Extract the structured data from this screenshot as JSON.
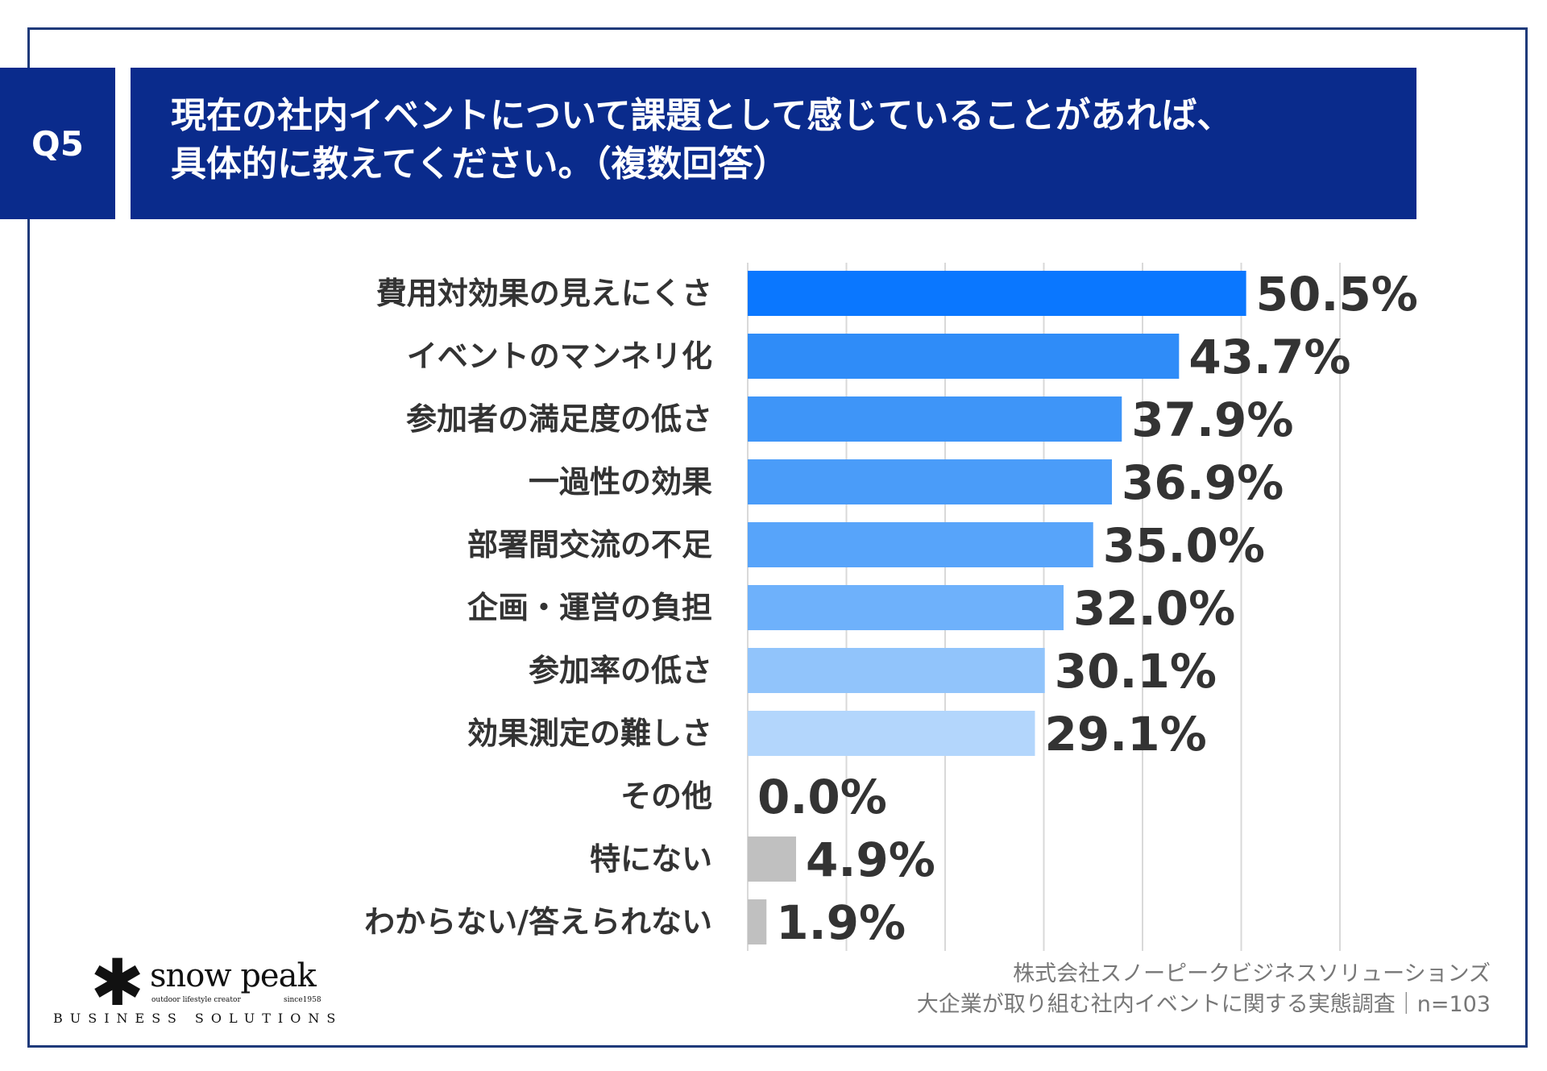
{
  "question": {
    "badge": "Q5",
    "line1": "現在の社内イベントについて課題として感じていることがあれば、",
    "line2": "具体的に教えてください。（複数回答）"
  },
  "chart_data": {
    "type": "bar",
    "orientation": "horizontal",
    "categories": [
      "費用対効果の見えにくさ",
      "イベントのマンネリ化",
      "参加者の満足度の低さ",
      "一過性の効果",
      "部署間交流の不足",
      "企画・運営の負担",
      "参加率の低さ",
      "効果測定の難しさ",
      "その他",
      "特にない",
      "わからない/答えられない"
    ],
    "values": [
      50.5,
      43.7,
      37.9,
      36.9,
      35.0,
      32.0,
      30.1,
      29.1,
      0.0,
      4.9,
      1.9
    ],
    "value_labels": [
      "50.5%",
      "43.7%",
      "37.9%",
      "36.9%",
      "35.0%",
      "32.0%",
      "30.1%",
      "29.1%",
      "0.0%",
      "4.9%",
      "1.9%"
    ],
    "colors": [
      "#0A77FF",
      "#2F8CF8",
      "#3E95F8",
      "#4A9CF9",
      "#57A4FA",
      "#6EB1FB",
      "#91C4FB",
      "#B3D6FC",
      "#C0C0C0",
      "#C0C0C0",
      "#C0C0C0"
    ],
    "xlim": [
      0,
      60
    ],
    "gridlines": [
      0,
      10,
      20,
      30,
      40,
      50,
      60
    ],
    "title": "",
    "xlabel": "",
    "ylabel": ""
  },
  "source": {
    "company": "株式会社スノーピークビジネスソリューションズ",
    "survey": "大企業が取り組む社内イベントに関する実態調査｜n=103"
  },
  "logo": {
    "mark": "✱",
    "name": "snow peak",
    "tagline": "outdoor lifestyle creator",
    "since": "since1958",
    "subtitle": "BUSINESS SOLUTIONS"
  }
}
